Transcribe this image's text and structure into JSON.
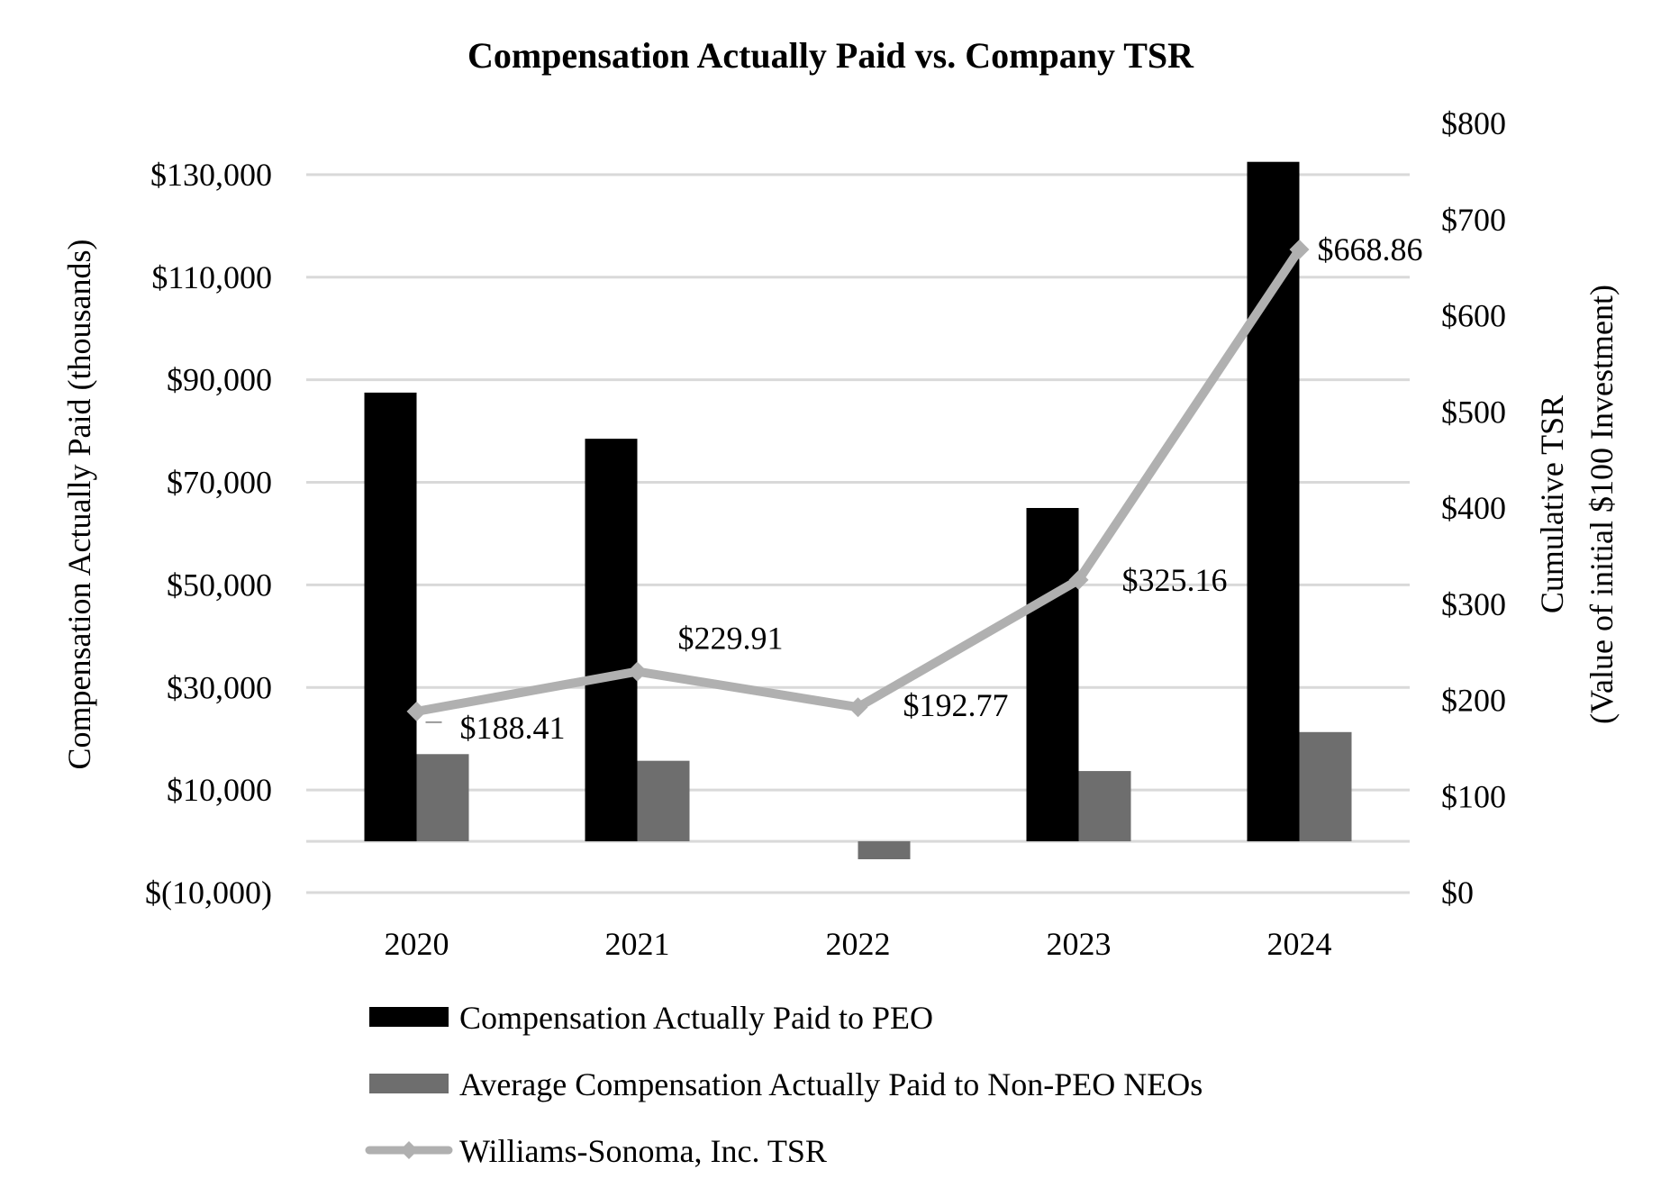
{
  "chart_data": {
    "type": "bar",
    "title": "Compensation Actually Paid vs. Company TSR",
    "categories": [
      "2020",
      "2021",
      "2022",
      "2023",
      "2024"
    ],
    "y_left": {
      "label": "Compensation Actually Paid (thousands)",
      "range": [
        -10000,
        140000
      ],
      "tick_values": [
        -10000,
        10000,
        30000,
        50000,
        70000,
        90000,
        110000,
        130000
      ],
      "tick_labels": [
        "$(10,000)",
        "$10,000",
        "$30,000",
        "$50,000",
        "$70,000",
        "$90,000",
        "$110,000",
        "$130,000"
      ]
    },
    "y_right": {
      "label_line1": "Cumulative TSR",
      "label_line2": "(Value of initial $100 Investment)",
      "range": [
        0,
        800
      ],
      "tick_values": [
        0,
        100,
        200,
        300,
        400,
        500,
        600,
        700,
        800
      ],
      "tick_labels": [
        "$0",
        "$100",
        "$200",
        "$300",
        "$400",
        "$500",
        "$600",
        "$700",
        "$800"
      ]
    },
    "series": [
      {
        "name": "Compensation Actually Paid to PEO",
        "kind": "bar",
        "axis": "left",
        "color": "#000000",
        "values": [
          87500,
          78500,
          0,
          65000,
          132500
        ]
      },
      {
        "name": "Average Compensation Actually Paid to Non-PEO NEOs",
        "kind": "bar",
        "axis": "left",
        "color": "#6e6e6e",
        "values": [
          17000,
          15700,
          -3500,
          13700,
          21300
        ]
      },
      {
        "name": "Williams-Sonoma, Inc. TSR",
        "kind": "line",
        "axis": "right",
        "color": "#b0b0b0",
        "marker": "diamond",
        "values": [
          188.41,
          229.91,
          192.77,
          325.16,
          668.86
        ],
        "value_labels": [
          "$188.41",
          "$229.91",
          "$192.77",
          "$325.16",
          "$668.86"
        ]
      }
    ],
    "gridlines": true,
    "legend_position": "bottom"
  }
}
